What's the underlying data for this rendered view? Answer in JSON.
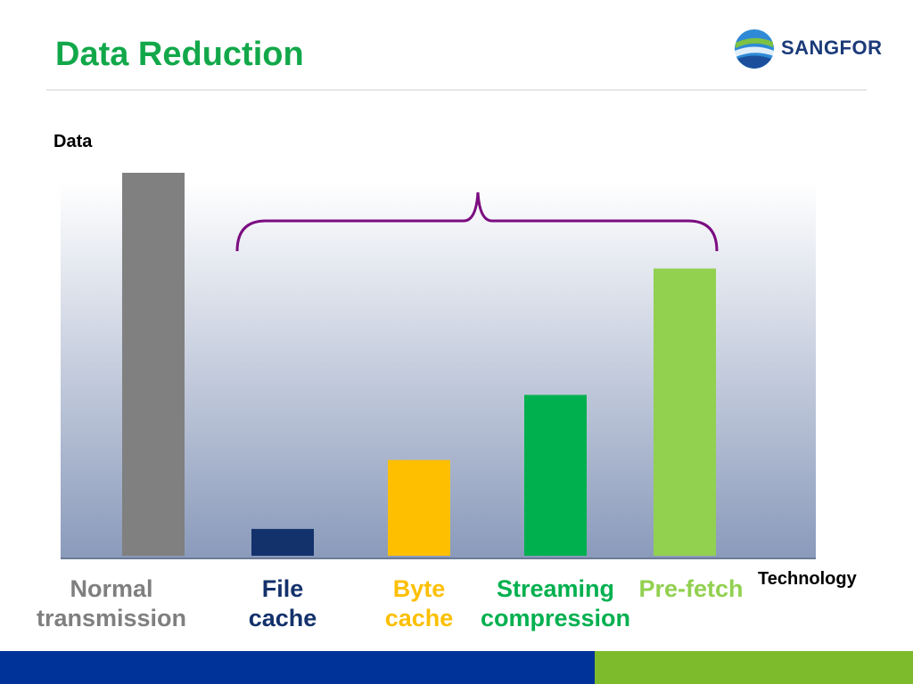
{
  "slide": {
    "title": "Data Reduction",
    "title_color": "#12a84a",
    "logo": {
      "text": "SANGFOR",
      "icon": "sangfor-globe-icon"
    }
  },
  "footer": {
    "left_color": "#003399",
    "right_color": "#7dbb2d"
  },
  "chart_data": {
    "type": "bar",
    "title": "",
    "xlabel": "Technology",
    "ylabel": "Data",
    "ylim": [
      0,
      100
    ],
    "grid": false,
    "legend": "none",
    "categories": [
      "Normal\ntransmission",
      "File\ncache",
      "Byte\ncache",
      "Streaming\ncompression",
      "Pre-fetch"
    ],
    "values": [
      100,
      7,
      25,
      42,
      75
    ],
    "colors": [
      "#808080",
      "#13316b",
      "#fdbf00",
      "#00b04f",
      "#92d050"
    ],
    "label_colors": [
      "#7f7f7f",
      "#13316b",
      "#fdbf00",
      "#00b04f",
      "#92d050"
    ],
    "annotation": {
      "type": "brace",
      "spans": [
        "File\ncache",
        "Pre-fetch"
      ],
      "color": "#7b0c80"
    }
  }
}
